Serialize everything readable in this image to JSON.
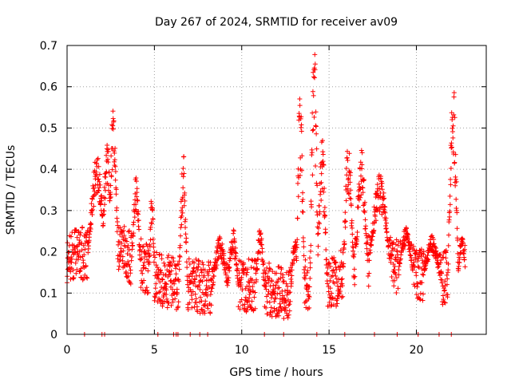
{
  "chart_data": {
    "type": "scatter",
    "title": "Day 267 of 2024, SRMTID for receiver av09",
    "xlabel": "GPS time / hours",
    "ylabel": "SRMTID / TECUs",
    "xlim": [
      0,
      24
    ],
    "ylim": [
      0,
      0.7
    ],
    "xticks": [
      0,
      5,
      10,
      15,
      20
    ],
    "yticks": [
      0,
      0.1,
      0.2,
      0.3,
      0.4,
      0.5,
      0.6,
      0.7
    ],
    "xtick_labels": [
      "0",
      "5",
      "10",
      "15",
      "20"
    ],
    "ytick_labels": [
      "0",
      "0.1",
      "0.2",
      "0.3",
      "0.4",
      "0.5",
      "0.6",
      "0.7"
    ],
    "grid": true,
    "marker": "+",
    "marker_color": "#ff0000",
    "data_generation": {
      "x_step_hours": 0.012,
      "x_end_hours": 22.8,
      "baseline": [
        [
          0,
          0.19
        ],
        [
          1.5,
          0.2
        ],
        [
          2.6,
          0.23
        ],
        [
          3.5,
          0.19
        ],
        [
          4.5,
          0.16
        ],
        [
          5.5,
          0.13
        ],
        [
          7.0,
          0.12
        ],
        [
          8.5,
          0.11
        ],
        [
          10.0,
          0.12
        ],
        [
          11.5,
          0.11
        ],
        [
          12.5,
          0.1
        ],
        [
          13.5,
          0.12
        ],
        [
          14.3,
          0.13
        ],
        [
          15.2,
          0.12
        ],
        [
          16.3,
          0.17
        ],
        [
          17.5,
          0.18
        ],
        [
          18.5,
          0.17
        ],
        [
          20.0,
          0.15
        ],
        [
          21.3,
          0.13
        ],
        [
          22.2,
          0.15
        ],
        [
          22.8,
          0.16
        ]
      ],
      "spikes": [
        {
          "x_start": 1.2,
          "x_end": 2.2,
          "max": 0.44
        },
        {
          "x_start": 2.0,
          "x_end": 2.6,
          "max": 0.47
        },
        {
          "x_start": 2.4,
          "x_end": 2.9,
          "max": 0.56
        },
        {
          "x_start": 3.7,
          "x_end": 4.2,
          "max": 0.39
        },
        {
          "x_start": 4.7,
          "x_end": 5.0,
          "max": 0.34
        },
        {
          "x_start": 6.4,
          "x_end": 6.9,
          "max": 0.44
        },
        {
          "x_start": 8.3,
          "x_end": 9.2,
          "max": 0.24
        },
        {
          "x_start": 9.2,
          "x_end": 9.8,
          "max": 0.26
        },
        {
          "x_start": 10.8,
          "x_end": 11.3,
          "max": 0.26
        },
        {
          "x_start": 12.8,
          "x_end": 13.3,
          "max": 0.24
        },
        {
          "x_start": 13.1,
          "x_end": 13.6,
          "max": 0.6
        },
        {
          "x_start": 13.9,
          "x_end": 14.4,
          "max": 0.7
        },
        {
          "x_start": 14.3,
          "x_end": 14.9,
          "max": 0.48
        },
        {
          "x_start": 15.8,
          "x_end": 16.4,
          "max": 0.47
        },
        {
          "x_start": 16.5,
          "x_end": 17.2,
          "max": 0.45
        },
        {
          "x_start": 17.3,
          "x_end": 18.5,
          "max": 0.39
        },
        {
          "x_start": 19.0,
          "x_end": 19.8,
          "max": 0.26
        },
        {
          "x_start": 20.4,
          "x_end": 21.4,
          "max": 0.24
        },
        {
          "x_start": 21.8,
          "x_end": 22.4,
          "max": 0.64
        },
        {
          "x_start": 22.4,
          "x_end": 22.8,
          "max": 0.24
        }
      ]
    },
    "zero_value_times": [
      1.0,
      2.0,
      2.15,
      5.2,
      6.1,
      6.25,
      6.35,
      7.05,
      7.6,
      8.05,
      11.3,
      12.4,
      14.3,
      15.9,
      17.6,
      18.9,
      20.1,
      21.3,
      22.0
    ]
  }
}
